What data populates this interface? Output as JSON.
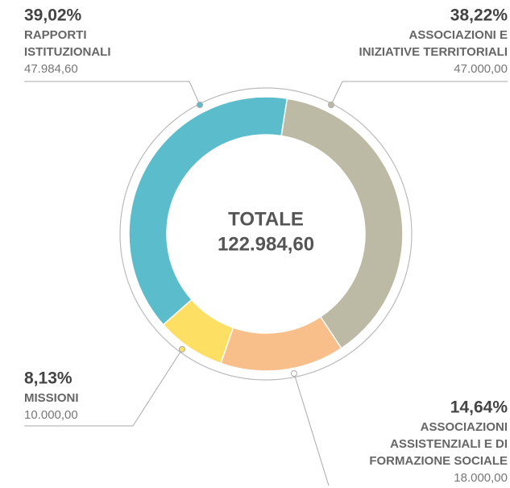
{
  "chart_data": {
    "type": "donut",
    "total_title": "TOTALE",
    "total": "122.984,60",
    "categories": [
      [
        "RAPPORTI",
        "ISTITUZIONALI"
      ],
      [
        "ASSOCIAZIONI E",
        "INIZIATIVE TERRITORIALI"
      ],
      [
        "ASSOCIAZIONI",
        "ASSISTENZIALI E DI",
        "FORMAZIONE SOCIALE"
      ],
      [
        "MISSIONI"
      ]
    ],
    "values": [
      39.02,
      38.22,
      14.64,
      8.13
    ],
    "value_labels": [
      "39,02%",
      "38,22%",
      "14,64%",
      "8,13%"
    ],
    "amounts": [
      47984.6,
      47000.0,
      18000.0,
      10000.0
    ],
    "amount_labels": [
      "47.984,60",
      "47.000,00",
      "18.000,00",
      "10.000,00"
    ],
    "colors": [
      "#5bbccc",
      "#bcbaa5",
      "#f9bf8a",
      "#fde063"
    ]
  }
}
